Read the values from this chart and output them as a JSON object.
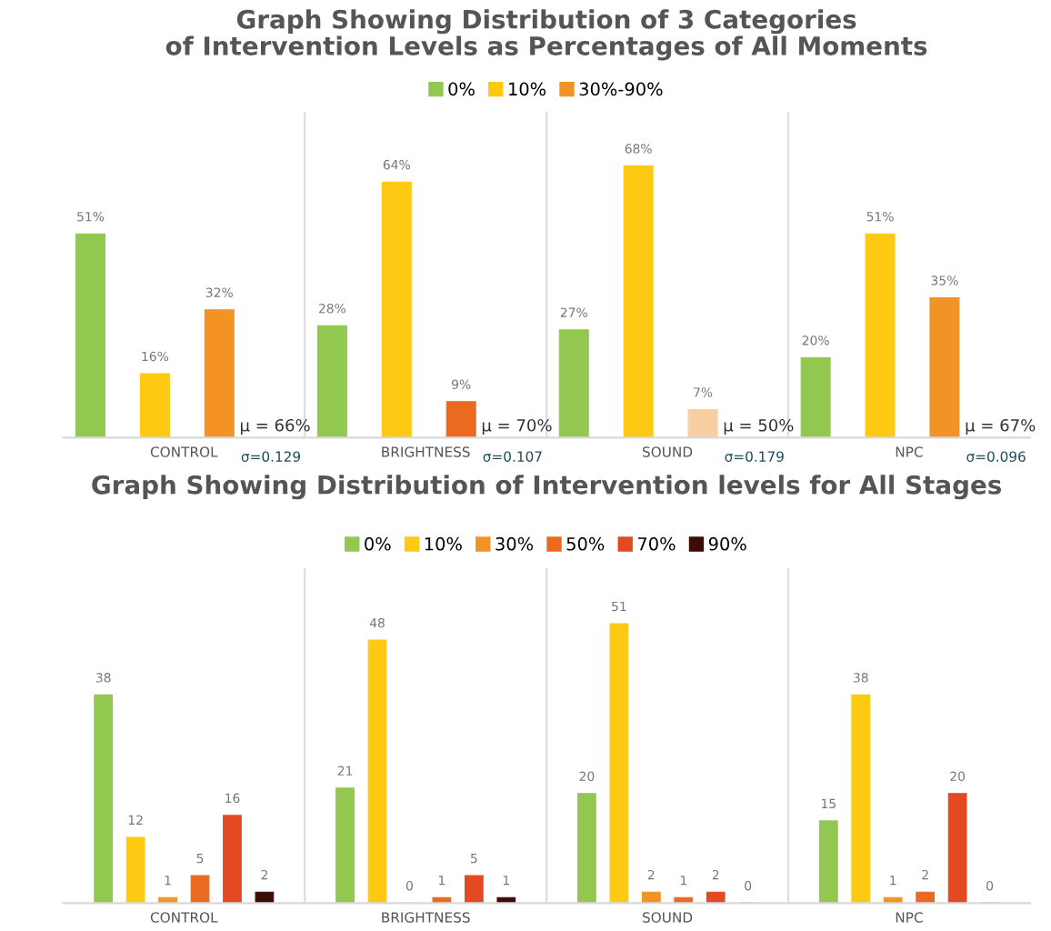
{
  "chart_data": [
    {
      "type": "bar",
      "title": "Graph Showing Distribution of 3 Categories\nof Intervention Levels as Percentages of All Moments",
      "categories": [
        "CONTROL",
        "BRIGHTNESS",
        "SOUND",
        "NPC"
      ],
      "series": [
        {
          "name": "0%",
          "color": "#92c84f",
          "values": [
            51,
            28,
            27,
            20
          ],
          "value_labels": [
            "51%",
            "28%",
            "27%",
            "20%"
          ]
        },
        {
          "name": "10%",
          "color": "#fdc912",
          "values": [
            16,
            64,
            68,
            51
          ],
          "value_labels": [
            "16%",
            "64%",
            "68%",
            "51%"
          ]
        },
        {
          "name": "30%-90%",
          "color": "#f39325",
          "colors": [
            "#f39325",
            "#ea6a20",
            "#f9cfa2",
            "#f39325"
          ],
          "values": [
            32,
            9,
            7,
            35
          ],
          "value_labels": [
            "32%",
            "9%",
            "7%",
            "35%"
          ]
        }
      ],
      "annotations": [
        "μ = 66%",
        "σ=0.129",
        "μ = 70%",
        "σ=0.107",
        "μ = 50%",
        "σ=0.179",
        "μ = 67%",
        "σ=0.096"
      ],
      "legend": "top",
      "grid": "x",
      "tick_labels": "x"
    },
    {
      "type": "bar",
      "title": "Graph Showing Distribution of Intervention levels for All Stages",
      "categories": [
        "CONTROL",
        "BRIGHTNESS",
        "SOUND",
        "NPC"
      ],
      "series": [
        {
          "name": "0%",
          "color": "#92c84f",
          "values": [
            38,
            21,
            20,
            15
          ]
        },
        {
          "name": "10%",
          "color": "#fdc912",
          "values": [
            12,
            48,
            51,
            38
          ]
        },
        {
          "name": "30%",
          "color": "#f39325",
          "values": [
            1,
            0,
            2,
            1
          ]
        },
        {
          "name": "50%",
          "color": "#ea6a20",
          "values": [
            5,
            1,
            1,
            2
          ]
        },
        {
          "name": "70%",
          "color": "#e34a22",
          "values": [
            16,
            5,
            2,
            20
          ]
        },
        {
          "name": "90%",
          "color": "#3d0c06",
          "values": [
            2,
            1,
            0,
            0
          ]
        }
      ],
      "data_labels": true,
      "legend": "top",
      "grid": "x",
      "tick_labels": "x"
    }
  ]
}
